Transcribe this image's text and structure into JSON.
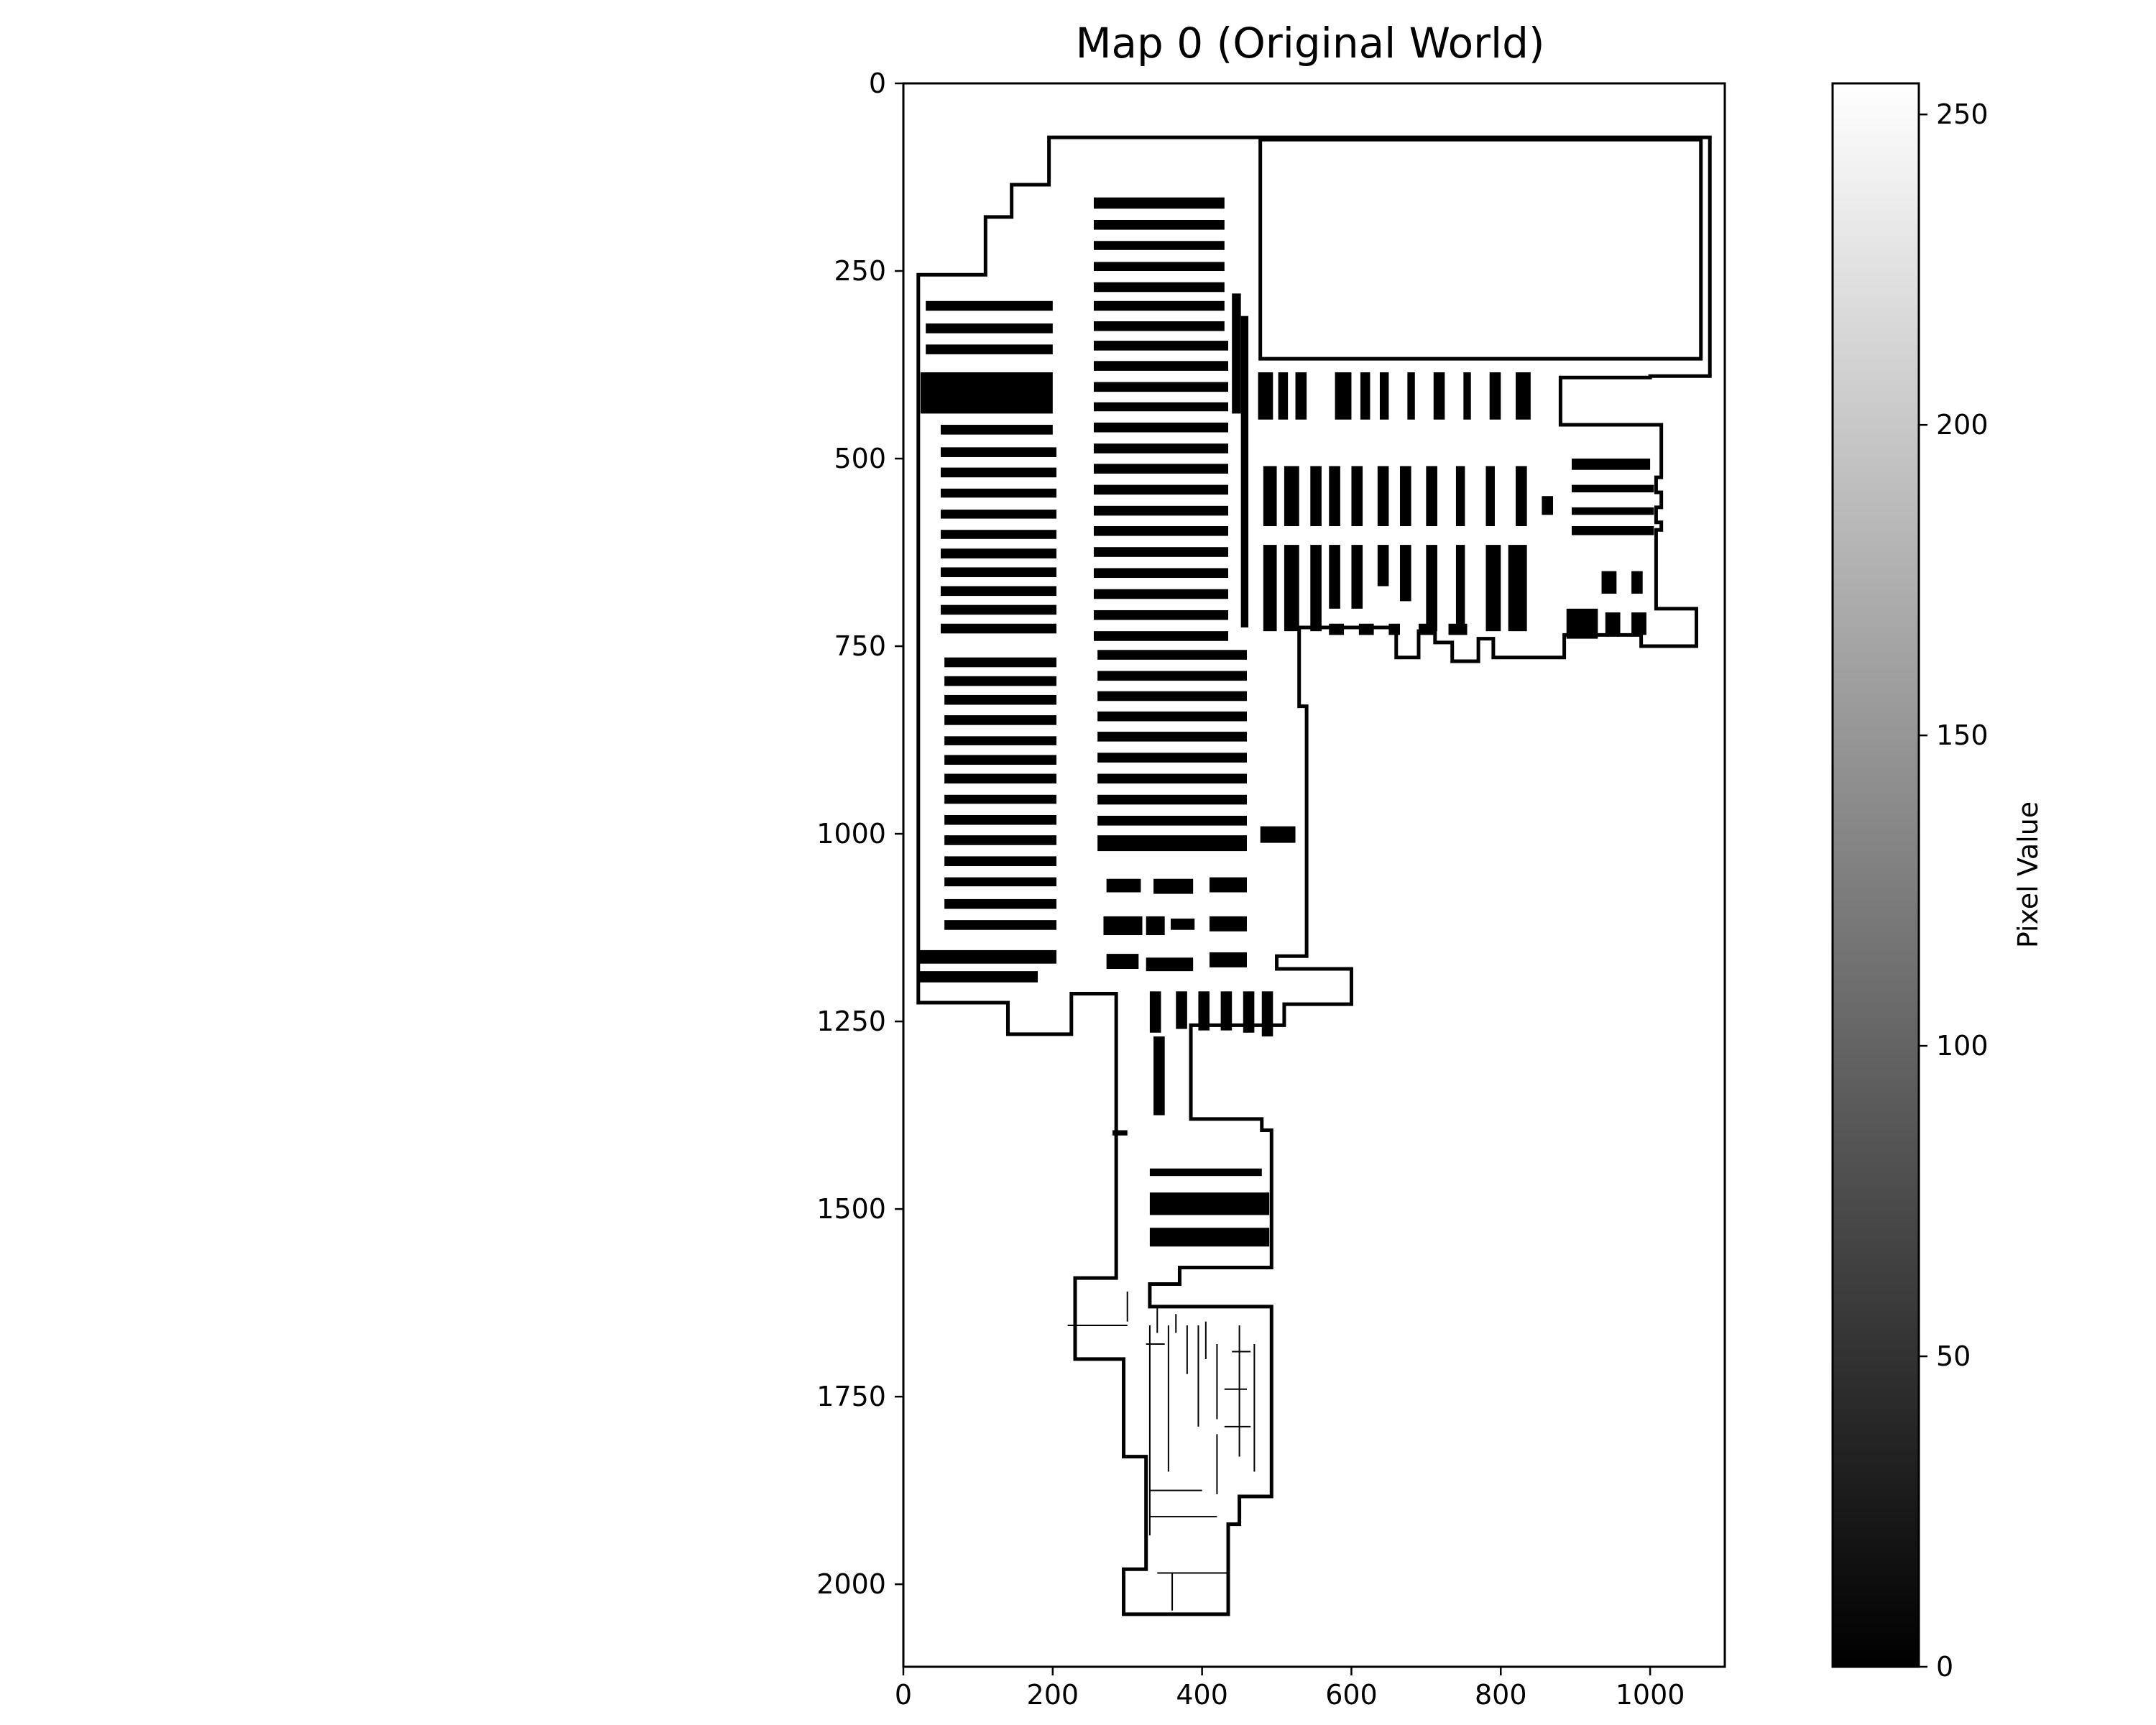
{
  "chart_data": {
    "type": "heatmap",
    "title": "Map 0 (Original World)",
    "xlim": [
      0,
      1100
    ],
    "ylim": [
      2110,
      0
    ],
    "x_ticks": [
      0,
      200,
      400,
      600,
      800,
      1000
    ],
    "y_ticks": [
      0,
      250,
      500,
      750,
      1000,
      1250,
      1500,
      1750,
      2000
    ],
    "colormap": "gray",
    "colorbar": {
      "label": "Pixel Value",
      "range": [
        0,
        255
      ],
      "ticks": [
        0,
        50,
        100,
        150,
        200,
        250
      ]
    },
    "background_value": 255,
    "wall_value": 0,
    "outline": [
      [
        200,
        72
      ],
      [
        1080,
        72
      ],
      [
        1080,
        390
      ],
      [
        1000,
        390
      ],
      [
        1000,
        392
      ],
      [
        880,
        392
      ],
      [
        880,
        455
      ],
      [
        1015,
        455
      ],
      [
        1015,
        525
      ],
      [
        1008,
        525
      ],
      [
        1008,
        545
      ],
      [
        1015,
        545
      ],
      [
        1015,
        565
      ],
      [
        1008,
        565
      ],
      [
        1008,
        585
      ],
      [
        1015,
        585
      ],
      [
        1015,
        595
      ],
      [
        1008,
        595
      ],
      [
        1008,
        700
      ],
      [
        1062,
        700
      ],
      [
        1062,
        750
      ],
      [
        988,
        750
      ],
      [
        988,
        735
      ],
      [
        885,
        735
      ],
      [
        885,
        765
      ],
      [
        790,
        765
      ],
      [
        790,
        740
      ],
      [
        770,
        740
      ],
      [
        770,
        770
      ],
      [
        735,
        770
      ],
      [
        735,
        745
      ],
      [
        712,
        745
      ],
      [
        712,
        730
      ],
      [
        690,
        730
      ],
      [
        690,
        765
      ],
      [
        660,
        765
      ],
      [
        660,
        725
      ],
      [
        530,
        725
      ],
      [
        530,
        830
      ],
      [
        540,
        830
      ],
      [
        540,
        1163
      ],
      [
        500,
        1163
      ],
      [
        500,
        1180
      ],
      [
        600,
        1180
      ],
      [
        600,
        1227
      ],
      [
        510,
        1227
      ],
      [
        510,
        1255
      ],
      [
        385,
        1255
      ],
      [
        385,
        1380
      ],
      [
        480,
        1380
      ],
      [
        480,
        1395
      ],
      [
        493,
        1395
      ],
      [
        493,
        1578
      ],
      [
        370,
        1578
      ],
      [
        370,
        1600
      ],
      [
        330,
        1600
      ],
      [
        330,
        1630
      ],
      [
        493,
        1630
      ],
      [
        493,
        1883
      ],
      [
        450,
        1883
      ],
      [
        450,
        1920
      ],
      [
        435,
        1920
      ],
      [
        435,
        2040
      ],
      [
        295,
        2040
      ],
      [
        295,
        1980
      ],
      [
        325,
        1980
      ],
      [
        325,
        1830
      ],
      [
        295,
        1830
      ],
      [
        295,
        1700
      ],
      [
        230,
        1700
      ],
      [
        230,
        1592
      ],
      [
        285,
        1592
      ],
      [
        285,
        1213
      ],
      [
        225,
        1213
      ],
      [
        225,
        1267
      ],
      [
        140,
        1267
      ],
      [
        140,
        1225
      ],
      [
        20,
        1225
      ],
      [
        20,
        255
      ],
      [
        110,
        255
      ],
      [
        110,
        178
      ],
      [
        145,
        178
      ],
      [
        145,
        135
      ],
      [
        195,
        135
      ],
      [
        195,
        72
      ]
    ],
    "inner_outline": [
      [
        478,
        75
      ],
      [
        1068,
        75
      ],
      [
        1068,
        367
      ],
      [
        478,
        367
      ]
    ],
    "blocks": [
      [
        30,
        290,
        200,
        303
      ],
      [
        30,
        320,
        200,
        333
      ],
      [
        30,
        348,
        200,
        361
      ],
      [
        23,
        385,
        200,
        440
      ],
      [
        50,
        455,
        200,
        468
      ],
      [
        50,
        485,
        205,
        498
      ],
      [
        50,
        512,
        205,
        525
      ],
      [
        50,
        540,
        205,
        552
      ],
      [
        50,
        568,
        205,
        580
      ],
      [
        50,
        595,
        205,
        607
      ],
      [
        50,
        620,
        205,
        633
      ],
      [
        50,
        645,
        205,
        658
      ],
      [
        50,
        670,
        205,
        683
      ],
      [
        50,
        695,
        205,
        708
      ],
      [
        50,
        720,
        205,
        733
      ],
      [
        55,
        765,
        205,
        778
      ],
      [
        55,
        790,
        205,
        803
      ],
      [
        55,
        815,
        205,
        828
      ],
      [
        55,
        842,
        205,
        855
      ],
      [
        55,
        870,
        205,
        882
      ],
      [
        55,
        895,
        205,
        908
      ],
      [
        55,
        920,
        205,
        933
      ],
      [
        55,
        948,
        205,
        960
      ],
      [
        55,
        975,
        205,
        988
      ],
      [
        55,
        1002,
        205,
        1015
      ],
      [
        55,
        1030,
        205,
        1043
      ],
      [
        55,
        1058,
        205,
        1070
      ],
      [
        55,
        1087,
        205,
        1100
      ],
      [
        55,
        1115,
        205,
        1128
      ],
      [
        20,
        1155,
        205,
        1173
      ],
      [
        20,
        1183,
        180,
        1198
      ],
      [
        255,
        152,
        430,
        167
      ],
      [
        255,
        182,
        430,
        195
      ],
      [
        255,
        210,
        430,
        222
      ],
      [
        255,
        238,
        430,
        250
      ],
      [
        255,
        265,
        430,
        278
      ],
      [
        255,
        290,
        430,
        303
      ],
      [
        255,
        317,
        430,
        330
      ],
      [
        255,
        343,
        435,
        356
      ],
      [
        255,
        370,
        435,
        383
      ],
      [
        255,
        398,
        435,
        411
      ],
      [
        255,
        425,
        435,
        437
      ],
      [
        255,
        452,
        435,
        465
      ],
      [
        255,
        480,
        435,
        493
      ],
      [
        255,
        507,
        435,
        520
      ],
      [
        255,
        535,
        435,
        548
      ],
      [
        255,
        563,
        435,
        576
      ],
      [
        255,
        590,
        435,
        603
      ],
      [
        255,
        618,
        435,
        631
      ],
      [
        255,
        646,
        435,
        659
      ],
      [
        255,
        674,
        435,
        687
      ],
      [
        255,
        702,
        435,
        715
      ],
      [
        255,
        730,
        435,
        743
      ],
      [
        260,
        755,
        460,
        768
      ],
      [
        260,
        783,
        460,
        796
      ],
      [
        260,
        810,
        460,
        823
      ],
      [
        260,
        837,
        460,
        850
      ],
      [
        260,
        864,
        460,
        877
      ],
      [
        260,
        892,
        460,
        905
      ],
      [
        260,
        920,
        460,
        933
      ],
      [
        260,
        948,
        460,
        961
      ],
      [
        260,
        976,
        460,
        989
      ],
      [
        260,
        1002,
        460,
        1023
      ],
      [
        272,
        1060,
        318,
        1078
      ],
      [
        335,
        1060,
        388,
        1080
      ],
      [
        410,
        1058,
        460,
        1078
      ],
      [
        268,
        1110,
        320,
        1135
      ],
      [
        325,
        1110,
        350,
        1135
      ],
      [
        358,
        1113,
        390,
        1128
      ],
      [
        410,
        1110,
        460,
        1130
      ],
      [
        272,
        1160,
        315,
        1180
      ],
      [
        325,
        1165,
        388,
        1183
      ],
      [
        410,
        1158,
        460,
        1178
      ],
      [
        478,
        990,
        525,
        1012
      ],
      [
        440,
        280,
        452,
        440
      ],
      [
        452,
        310,
        462,
        725
      ],
      [
        475,
        385,
        495,
        448
      ],
      [
        502,
        385,
        515,
        448
      ],
      [
        525,
        385,
        540,
        448
      ],
      [
        578,
        385,
        600,
        448
      ],
      [
        612,
        385,
        625,
        448
      ],
      [
        638,
        385,
        650,
        448
      ],
      [
        675,
        385,
        685,
        448
      ],
      [
        710,
        385,
        725,
        448
      ],
      [
        750,
        385,
        760,
        448
      ],
      [
        785,
        385,
        800,
        448
      ],
      [
        820,
        385,
        840,
        448
      ],
      [
        482,
        510,
        500,
        590
      ],
      [
        510,
        510,
        530,
        590
      ],
      [
        545,
        510,
        560,
        590
      ],
      [
        570,
        510,
        585,
        590
      ],
      [
        600,
        510,
        615,
        590
      ],
      [
        635,
        510,
        650,
        590
      ],
      [
        665,
        510,
        680,
        590
      ],
      [
        700,
        510,
        715,
        590
      ],
      [
        740,
        510,
        752,
        590
      ],
      [
        780,
        510,
        792,
        590
      ],
      [
        820,
        510,
        835,
        590
      ],
      [
        482,
        615,
        500,
        730
      ],
      [
        510,
        615,
        530,
        730
      ],
      [
        545,
        615,
        560,
        730
      ],
      [
        570,
        615,
        585,
        700
      ],
      [
        600,
        615,
        615,
        700
      ],
      [
        635,
        615,
        650,
        670
      ],
      [
        665,
        615,
        680,
        690
      ],
      [
        700,
        615,
        715,
        730
      ],
      [
        740,
        615,
        752,
        730
      ],
      [
        780,
        615,
        800,
        730
      ],
      [
        810,
        615,
        835,
        730
      ],
      [
        570,
        720,
        590,
        735
      ],
      [
        610,
        720,
        630,
        735
      ],
      [
        650,
        720,
        665,
        735
      ],
      [
        690,
        720,
        710,
        735
      ],
      [
        730,
        720,
        755,
        735
      ],
      [
        895,
        500,
        1000,
        515
      ],
      [
        895,
        535,
        1005,
        545
      ],
      [
        895,
        565,
        1005,
        575
      ],
      [
        895,
        590,
        1005,
        602
      ],
      [
        855,
        550,
        870,
        575
      ],
      [
        935,
        650,
        955,
        680
      ],
      [
        975,
        650,
        990,
        680
      ],
      [
        888,
        700,
        930,
        740
      ],
      [
        940,
        705,
        960,
        735
      ],
      [
        975,
        705,
        995,
        735
      ],
      [
        330,
        1210,
        345,
        1265
      ],
      [
        365,
        1210,
        380,
        1260
      ],
      [
        395,
        1210,
        410,
        1262
      ],
      [
        425,
        1210,
        440,
        1262
      ],
      [
        455,
        1210,
        470,
        1265
      ],
      [
        480,
        1210,
        495,
        1270
      ],
      [
        335,
        1270,
        350,
        1375
      ],
      [
        330,
        1446,
        480,
        1456
      ],
      [
        330,
        1478,
        490,
        1508
      ],
      [
        330,
        1525,
        490,
        1550
      ],
      [
        280,
        1395,
        300,
        1402
      ]
    ],
    "thin_walls": [
      [
        [
          330,
          1655
        ],
        [
          330,
          1935
        ]
      ],
      [
        [
          355,
          1655
        ],
        [
          355,
          1850
        ]
      ],
      [
        [
          380,
          1655
        ],
        [
          380,
          1720
        ]
      ],
      [
        [
          395,
          1655
        ],
        [
          395,
          1790
        ]
      ],
      [
        [
          405,
          1650
        ],
        [
          405,
          1700
        ]
      ],
      [
        [
          420,
          1680
        ],
        [
          420,
          1780
        ]
      ],
      [
        [
          450,
          1655
        ],
        [
          450,
          1830
        ]
      ],
      [
        [
          470,
          1680
        ],
        [
          470,
          1850
        ]
      ],
      [
        [
          440,
          1690
        ],
        [
          465,
          1690
        ]
      ],
      [
        [
          430,
          1740
        ],
        [
          460,
          1740
        ]
      ],
      [
        [
          430,
          1790
        ],
        [
          465,
          1790
        ]
      ],
      [
        [
          420,
          1800
        ],
        [
          420,
          1880
        ]
      ],
      [
        [
          325,
          1680
        ],
        [
          350,
          1680
        ]
      ],
      [
        [
          330,
          1875
        ],
        [
          400,
          1875
        ]
      ],
      [
        [
          330,
          1910
        ],
        [
          420,
          1910
        ]
      ],
      [
        [
          340,
          1985
        ],
        [
          435,
          1985
        ]
      ],
      [
        [
          360,
          1985
        ],
        [
          360,
          2035
        ]
      ],
      [
        [
          220,
          1655
        ],
        [
          300,
          1655
        ]
      ],
      [
        [
          340,
          1630
        ],
        [
          340,
          1665
        ]
      ],
      [
        [
          365,
          1640
        ],
        [
          365,
          1665
        ]
      ],
      [
        [
          300,
          1610
        ],
        [
          300,
          1650
        ]
      ]
    ]
  }
}
